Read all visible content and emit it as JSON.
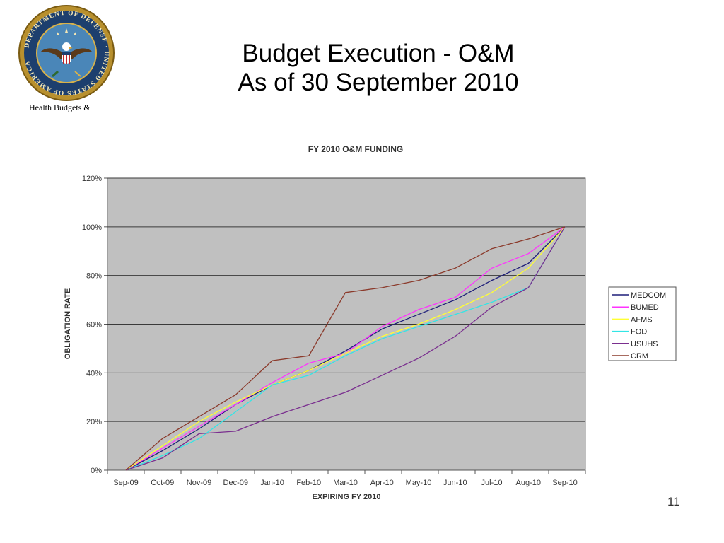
{
  "slide": {
    "title_line1": "Budget Execution - O&M",
    "title_line2": "As of 30 September 2010",
    "seal_caption": "Health Budgets  &",
    "seal_text": "DEPARTMENT OF DEFENSE · UNITED STATES OF AMERICA",
    "page_number": "11"
  },
  "chart_data": {
    "type": "line",
    "title": "FY 2010 O&M FUNDING",
    "xlabel": "EXPIRING FY 2010",
    "ylabel": "OBLIGATION RATE",
    "ylim": [
      0,
      120
    ],
    "ytick_values": [
      0,
      20,
      40,
      60,
      80,
      100,
      120
    ],
    "ytick_labels": [
      "0%",
      "20%",
      "40%",
      "60%",
      "80%",
      "100%",
      "120%"
    ],
    "categories": [
      "Sep-09",
      "Oct-09",
      "Nov-09",
      "Dec-09",
      "Jan-10",
      "Feb-10",
      "Mar-10",
      "Apr-10",
      "May-10",
      "Jun-10",
      "Jul-10",
      "Aug-10",
      "Sep-10"
    ],
    "grid": true,
    "legend_position": "right",
    "plot_background": "#c0c0c0",
    "series": [
      {
        "name": "MEDCOM",
        "color": "#1f1f7a",
        "values": [
          0,
          8,
          17,
          27,
          35,
          41,
          49,
          58,
          64,
          70,
          78,
          85,
          100
        ]
      },
      {
        "name": "BUMED",
        "color": "#ff33ff",
        "values": [
          0,
          9,
          18,
          27,
          36,
          44,
          48,
          59,
          66,
          71,
          83,
          89,
          100
        ]
      },
      {
        "name": "AFMS",
        "color": "#ffff33",
        "values": [
          0,
          10,
          20,
          28,
          35,
          41,
          48,
          55,
          60,
          66,
          73,
          83,
          100
        ]
      },
      {
        "name": "FOD",
        "color": "#33e5e5",
        "values": [
          0,
          6,
          13,
          24,
          35,
          39,
          47,
          54,
          59,
          64,
          69,
          75,
          100
        ]
      },
      {
        "name": "USUHS",
        "color": "#7a2f8f",
        "values": [
          0,
          5,
          15,
          16,
          22,
          27,
          32,
          39,
          46,
          55,
          67,
          75,
          100
        ]
      },
      {
        "name": "CRM",
        "color": "#8b3a2b",
        "values": [
          0,
          13,
          22,
          31,
          45,
          47,
          73,
          75,
          78,
          83,
          91,
          95,
          100
        ]
      }
    ]
  }
}
